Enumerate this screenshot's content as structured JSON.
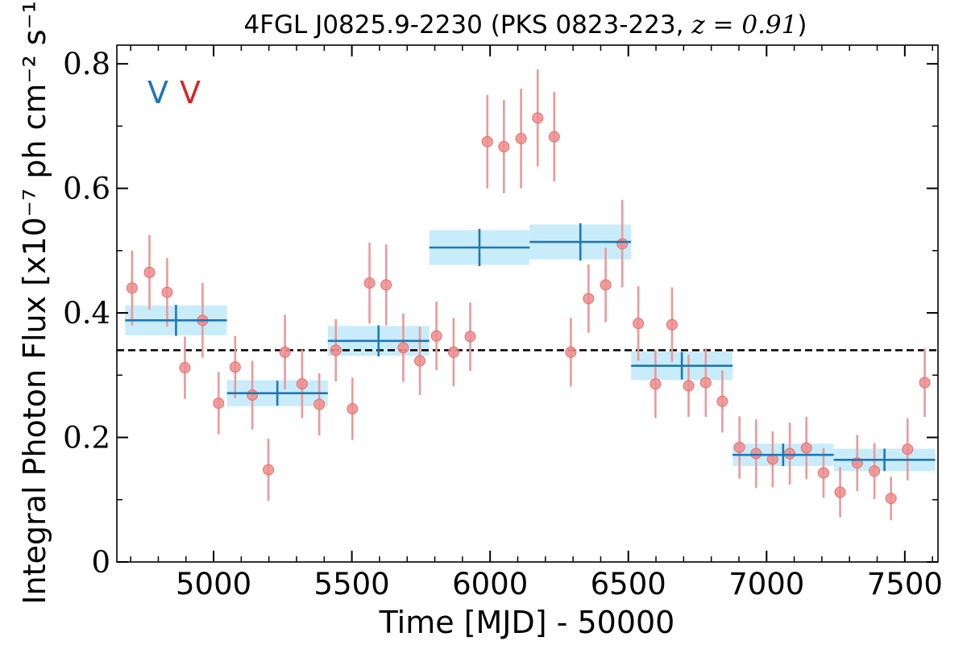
{
  "chart_data": {
    "type": "scatter",
    "title": "4FGL J0825.9-2230 (PKS 0823-223, z = 0.91)",
    "title_parts": {
      "main": "4FGL J0825.9-2230 (PKS 0823-223, ",
      "math": "z = 0.91",
      "close": ")"
    },
    "xlabel": "Time [MJD] - 50000",
    "ylabel": "Integral Photon Flux [x10⁻⁷ ph cm⁻² s⁻¹]",
    "xlim": [
      4650,
      7620
    ],
    "ylim": [
      0,
      0.83
    ],
    "x_ticks": [
      5000,
      5500,
      6000,
      6500,
      7000,
      7500
    ],
    "x_tick_labels": [
      "5000",
      "5500",
      "6000",
      "6500",
      "7000",
      "7500"
    ],
    "y_ticks": [
      0,
      0.2,
      0.4,
      0.6,
      0.8
    ],
    "y_tick_labels": [
      "0",
      "0.2",
      "0.4",
      "0.6",
      "0.8"
    ],
    "grid": false,
    "legend": {
      "placement": "top-left",
      "entries": [
        {
          "label": "V",
          "color": "#1f77b4"
        },
        {
          "label": "V",
          "color": "#d62728"
        }
      ]
    },
    "reference_line": {
      "y": 0.34,
      "style": "dashed",
      "color": "#000000"
    },
    "colors": {
      "binned": "#1f77b4",
      "binned_band": "#c9ecfb",
      "points": "#ef8c8c",
      "point_errors": "#e99a9a"
    },
    "series": [
      {
        "kind": "points_with_errors",
        "x": [
          4705,
          4768,
          4832,
          4896,
          4960,
          5018,
          5078,
          5140,
          5198,
          5258,
          5320,
          5382,
          5442,
          5502,
          5564,
          5624,
          5686,
          5746,
          5806,
          5868,
          5928,
          5990,
          6050,
          6112,
          6172,
          6232,
          6292,
          6356,
          6418,
          6478,
          6536,
          6598,
          6658,
          6718,
          6780,
          6840,
          6902,
          6962,
          7022,
          7084,
          7144,
          7206,
          7266,
          7328,
          7390,
          7450,
          7510,
          7572
        ],
        "y": [
          0.44,
          0.465,
          0.433,
          0.312,
          0.388,
          0.255,
          0.313,
          0.268,
          0.148,
          0.337,
          0.286,
          0.253,
          0.34,
          0.246,
          0.448,
          0.445,
          0.344,
          0.323,
          0.363,
          0.337,
          0.362,
          0.675,
          0.667,
          0.68,
          0.713,
          0.683,
          0.337,
          0.423,
          0.445,
          0.511,
          0.383,
          0.286,
          0.381,
          0.283,
          0.288,
          0.258,
          0.184,
          0.174,
          0.165,
          0.174,
          0.183,
          0.143,
          0.112,
          0.159,
          0.146,
          0.102,
          0.181,
          0.288
        ],
        "y_err": [
          0.06,
          0.06,
          0.055,
          0.05,
          0.06,
          0.05,
          0.05,
          0.055,
          0.05,
          0.06,
          0.055,
          0.05,
          0.05,
          0.05,
          0.065,
          0.065,
          0.055,
          0.055,
          0.055,
          0.055,
          0.055,
          0.075,
          0.075,
          0.08,
          0.078,
          0.072,
          0.055,
          0.055,
          0.06,
          0.07,
          0.06,
          0.055,
          0.06,
          0.05,
          0.055,
          0.05,
          0.05,
          0.055,
          0.045,
          0.05,
          0.05,
          0.04,
          0.04,
          0.045,
          0.045,
          0.035,
          0.05,
          0.055
        ]
      },
      {
        "kind": "binned_with_bands",
        "x_start": [
          4680,
          5048,
          5413,
          5780,
          6143,
          6510,
          6877,
          7243
        ],
        "x_end": [
          5048,
          5413,
          5780,
          6143,
          6510,
          6877,
          7243,
          7610
        ],
        "y": [
          0.388,
          0.271,
          0.355,
          0.505,
          0.514,
          0.315,
          0.172,
          0.164
        ],
        "y_err": [
          0.025,
          0.02,
          0.025,
          0.03,
          0.03,
          0.022,
          0.018,
          0.018
        ],
        "band_halfwidth": [
          0.024,
          0.021,
          0.024,
          0.028,
          0.028,
          0.023,
          0.018,
          0.018
        ]
      }
    ]
  }
}
